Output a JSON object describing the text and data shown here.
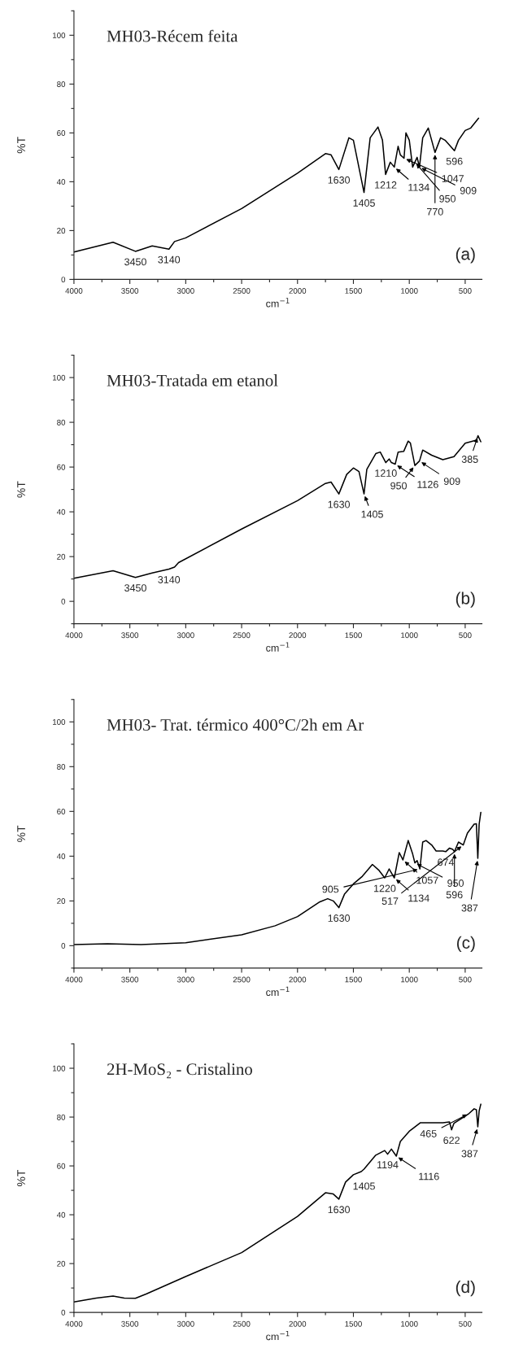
{
  "chart_data": [
    {
      "type": "line",
      "title": "MH03-Récem feita",
      "xlabel": "cm$^{−1}$",
      "ylabel": "%T",
      "color": "#000000",
      "x": [
        4000,
        3650,
        3450,
        3300,
        3150,
        3100,
        3000,
        2500,
        2000,
        1750,
        1700,
        1630,
        1540,
        1500,
        1405,
        1350,
        1280,
        1240,
        1212,
        1170,
        1134,
        1100,
        1080,
        1047,
        1030,
        1000,
        970,
        950,
        930,
        909,
        880,
        830,
        770,
        720,
        680,
        596,
        560,
        500,
        450,
        380
      ],
      "values": [
        11.2,
        15.2,
        11.5,
        13.7,
        12.4,
        15.5,
        17,
        29,
        43.5,
        51.5,
        51,
        45,
        58,
        57,
        35.6,
        58,
        62.4,
        57,
        43,
        48,
        46,
        54.5,
        51,
        49.6,
        60,
        57,
        46,
        48,
        50,
        46,
        58,
        62,
        52,
        58,
        57,
        52.7,
        57,
        61,
        62,
        66
      ],
      "xlim": [
        4000,
        350
      ],
      "ylim": [
        0,
        110
      ],
      "xticks": [
        4000,
        3500,
        3000,
        2500,
        2000,
        1500,
        1000,
        500
      ],
      "yticks": [
        0,
        20,
        40,
        60,
        80,
        100
      ],
      "annotations": [
        {
          "text": "3450",
          "x": 3450,
          "y": 11.5
        },
        {
          "text": "3140",
          "x": 3150,
          "y": 12.4
        },
        {
          "text": "1630",
          "x": 1630,
          "y": 45
        },
        {
          "text": "1405",
          "x": 1405,
          "y": 35.6
        },
        {
          "text": "1212",
          "x": 1212,
          "y": 43
        },
        {
          "text": "1134",
          "x": 1134,
          "y": 46
        },
        {
          "text": "1047",
          "x": 1047,
          "y": 49.6
        },
        {
          "text": "950",
          "x": 950,
          "y": 48
        },
        {
          "text": "909",
          "x": 909,
          "y": 46
        },
        {
          "text": "770",
          "x": 770,
          "y": 52
        },
        {
          "text": "596",
          "x": 596,
          "y": 52.7
        },
        "(a)"
      ]
    },
    {
      "type": "line",
      "title": "MH03-Tratada em etanol",
      "xlabel": "cm$^{−1}$",
      "ylabel": "%T",
      "color": "#000000",
      "x": [
        4000,
        3650,
        3450,
        3300,
        3150,
        3100,
        3064,
        2500,
        2000,
        1750,
        1700,
        1630,
        1560,
        1500,
        1450,
        1405,
        1380,
        1300,
        1260,
        1210,
        1180,
        1160,
        1126,
        1100,
        1050,
        1010,
        990,
        950,
        909,
        880,
        800,
        700,
        600,
        500,
        400,
        385,
        360
      ],
      "values": [
        10.3,
        13.7,
        10.7,
        12.7,
        14.4,
        15.3,
        17.3,
        32.3,
        45,
        52.7,
        53.3,
        48,
        56.7,
        59.6,
        58,
        48,
        59,
        66,
        66.7,
        62,
        63.6,
        62,
        61.3,
        66.7,
        67,
        71.6,
        70.7,
        60.7,
        62.7,
        67.6,
        65.3,
        63.3,
        64.7,
        70.7,
        72,
        74,
        71.3
      ],
      "xlim": [
        4000,
        350
      ],
      "ylim": [
        -10,
        110
      ],
      "xticks": [
        4000,
        3500,
        3000,
        2500,
        2000,
        1500,
        1000,
        500
      ],
      "yticks": [
        0,
        20,
        40,
        60,
        80,
        100
      ],
      "annotations": [
        {
          "text": "3450",
          "x": 3450,
          "y": 10.7
        },
        {
          "text": "3140",
          "x": 3150,
          "y": 14.4
        },
        {
          "text": "1630",
          "x": 1630,
          "y": 48
        },
        {
          "text": "1405",
          "x": 1405,
          "y": 48
        },
        {
          "text": "1210",
          "x": 1210,
          "y": 62
        },
        {
          "text": "1126",
          "x": 1126,
          "y": 61.3
        },
        {
          "text": "950",
          "x": 950,
          "y": 60.7
        },
        {
          "text": "909",
          "x": 909,
          "y": 62.7
        },
        {
          "text": "385",
          "x": 385,
          "y": 74
        },
        "(b)"
      ]
    },
    {
      "type": "line",
      "title": "MH03- Trat. térmico 400°C/2h em Ar",
      "xlabel": "cm$^{−1}$",
      "ylabel": "%T",
      "color": "#000000",
      "x": [
        4000,
        3700,
        3400,
        3000,
        2500,
        2200,
        2000,
        1800,
        1730,
        1680,
        1630,
        1580,
        1500,
        1420,
        1330,
        1270,
        1220,
        1180,
        1134,
        1090,
        1057,
        1010,
        970,
        950,
        930,
        905,
        880,
        850,
        800,
        760,
        700,
        674,
        640,
        610,
        596,
        560,
        517,
        480,
        420,
        400,
        387,
        375,
        360
      ],
      "values": [
        0.5,
        0.9,
        0.5,
        1.3,
        4.9,
        8.9,
        13,
        19.6,
        21,
        20,
        17,
        23,
        27.6,
        31,
        36.3,
        33.6,
        30.3,
        34.3,
        30.3,
        41.6,
        38.3,
        47,
        41,
        37,
        38,
        34.3,
        46.3,
        47,
        45,
        42.3,
        42.3,
        42,
        43.6,
        43,
        42,
        46.3,
        45,
        50.3,
        54.3,
        54.5,
        39,
        54.3,
        59.6
      ],
      "xlim": [
        4000,
        350
      ],
      "ylim": [
        -10,
        110
      ],
      "xticks": [
        4000,
        3500,
        3000,
        2500,
        2000,
        1500,
        1000,
        500
      ],
      "yticks": [
        0,
        20,
        40,
        60,
        80,
        100
      ],
      "annotations": [
        {
          "text": "1630",
          "x": 1630,
          "y": 17
        },
        {
          "text": "1220",
          "x": 1220,
          "y": 30.3
        },
        {
          "text": "1134",
          "x": 1134,
          "y": 30.3
        },
        {
          "text": "1057",
          "x": 1057,
          "y": 38.3
        },
        {
          "text": "950",
          "x": 950,
          "y": 37
        },
        {
          "text": "905",
          "x": 905,
          "y": 34.3
        },
        {
          "text": "674",
          "x": 674,
          "y": 42
        },
        {
          "text": "596",
          "x": 596,
          "y": 42
        },
        {
          "text": "517",
          "x": 517,
          "y": 45
        },
        {
          "text": "387",
          "x": 387,
          "y": 39
        },
        "(c)"
      ]
    },
    {
      "type": "line",
      "title": "2H-MoS₂ - Cristalino",
      "xlabel": "cm$^{−1}$",
      "ylabel": "%T",
      "color": "#000000",
      "x": [
        4000,
        3800,
        3650,
        3550,
        3450,
        3350,
        3000,
        2500,
        2000,
        1750,
        1680,
        1630,
        1570,
        1500,
        1430,
        1405,
        1300,
        1220,
        1194,
        1160,
        1116,
        1080,
        1000,
        900,
        700,
        640,
        622,
        600,
        500,
        465,
        420,
        400,
        387,
        375,
        360
      ],
      "values": [
        4.3,
        5.9,
        6.7,
        5.9,
        5.8,
        7.6,
        14.7,
        24.5,
        39.3,
        49,
        48.5,
        46.4,
        53.4,
        56.4,
        57.7,
        58.7,
        64.4,
        66.3,
        64.8,
        66.9,
        64,
        70,
        74.2,
        77.7,
        77.7,
        78,
        74.8,
        77.5,
        80.4,
        81.5,
        83.4,
        83,
        76,
        82.5,
        85.3
      ],
      "xlim": [
        4000,
        350
      ],
      "ylim": [
        0,
        110
      ],
      "xticks": [
        4000,
        3500,
        3000,
        2500,
        2000,
        1500,
        1000,
        500
      ],
      "yticks": [
        0,
        20,
        40,
        60,
        80,
        100
      ],
      "annotations": [
        {
          "text": "1630",
          "x": 1630,
          "y": 46.4
        },
        {
          "text": "1405",
          "x": 1405,
          "y": 58.7
        },
        {
          "text": "1194",
          "x": 1194,
          "y": 64.8
        },
        {
          "text": "1116",
          "x": 1116,
          "y": 64
        },
        {
          "text": "622",
          "x": 622,
          "y": 74.8
        },
        {
          "text": "465",
          "x": 465,
          "y": 81.5
        },
        {
          "text": "387",
          "x": 387,
          "y": 76
        },
        "(d)"
      ]
    }
  ]
}
